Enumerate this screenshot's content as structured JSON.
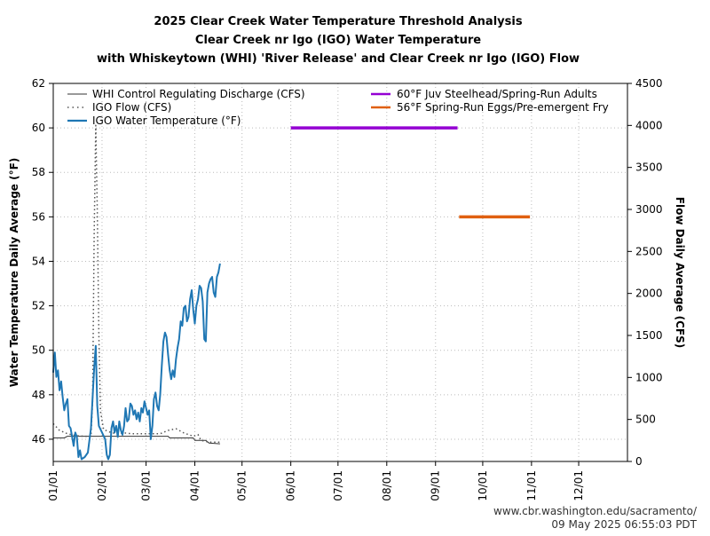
{
  "chart_data": {
    "type": "line",
    "title": "2025 Clear Creek Water Temperature Threshold Analysis",
    "subtitle_lines": [
      "Clear Creek nr Igo (IGO) Water Temperature",
      "with Whiskeytown (WHI) 'River Release' and Clear Creek nr Igo (IGO) Flow"
    ],
    "ylabel": "Water Temperature Daily Average (°F)",
    "y2label": "Flow Daily Average (CFS)",
    "ylim": [
      45,
      62
    ],
    "y2lim": [
      0,
      4500
    ],
    "xlim": [
      "2025-01-01",
      "2026-01-01"
    ],
    "x_tick_labels": [
      "01/01",
      "02/01",
      "03/01",
      "04/01",
      "05/01",
      "06/01",
      "07/01",
      "08/01",
      "09/01",
      "10/01",
      "11/01",
      "12/01"
    ],
    "x_tick_dates": [
      "2025-01-01",
      "2025-02-01",
      "2025-03-01",
      "2025-04-01",
      "2025-05-01",
      "2025-06-01",
      "2025-07-01",
      "2025-08-01",
      "2025-09-01",
      "2025-10-01",
      "2025-11-01",
      "2025-12-01"
    ],
    "y_ticks": [
      46,
      48,
      50,
      52,
      54,
      56,
      58,
      60,
      62
    ],
    "y2_ticks": [
      0,
      500,
      1000,
      1500,
      2000,
      2500,
      3000,
      3500,
      4000,
      4500
    ],
    "grid": true,
    "legend_left": [
      "WHI Control Regulating Discharge (CFS)",
      "IGO Flow (CFS)",
      "IGO Water Temperature (°F)"
    ],
    "legend_right": [
      "60°F Juv Steelhead/Spring-Run Adults",
      "56°F Spring-Run Eggs/Pre-emergent Fry"
    ],
    "series": [
      {
        "name": "IGO Water Temperature (°F)",
        "axis": "left",
        "color": "#1f77b4",
        "style": "solid",
        "points": [
          [
            "2025-01-01",
            49.0
          ],
          [
            "2025-01-02",
            49.9
          ],
          [
            "2025-01-03",
            48.8
          ],
          [
            "2025-01-04",
            49.1
          ],
          [
            "2025-01-05",
            48.2
          ],
          [
            "2025-01-06",
            48.6
          ],
          [
            "2025-01-07",
            47.9
          ],
          [
            "2025-01-08",
            47.3
          ],
          [
            "2025-01-09",
            47.6
          ],
          [
            "2025-01-10",
            47.8
          ],
          [
            "2025-01-11",
            46.6
          ],
          [
            "2025-01-12",
            46.5
          ],
          [
            "2025-01-13",
            46.1
          ],
          [
            "2025-01-14",
            45.7
          ],
          [
            "2025-01-15",
            46.3
          ],
          [
            "2025-01-16",
            46.1
          ],
          [
            "2025-01-17",
            45.2
          ],
          [
            "2025-01-18",
            45.5
          ],
          [
            "2025-01-19",
            45.1
          ],
          [
            "2025-01-21",
            45.2
          ],
          [
            "2025-01-23",
            45.4
          ],
          [
            "2025-01-25",
            46.5
          ],
          [
            "2025-01-27",
            49.2
          ],
          [
            "2025-01-28",
            50.2
          ],
          [
            "2025-01-29",
            47.5
          ],
          [
            "2025-01-30",
            46.6
          ],
          [
            "2025-02-01",
            46.3
          ],
          [
            "2025-02-03",
            46.0
          ],
          [
            "2025-02-04",
            45.3
          ],
          [
            "2025-02-05",
            45.1
          ],
          [
            "2025-02-06",
            45.3
          ],
          [
            "2025-02-07",
            46.5
          ],
          [
            "2025-02-08",
            46.8
          ],
          [
            "2025-02-09",
            46.3
          ],
          [
            "2025-02-10",
            46.6
          ],
          [
            "2025-02-11",
            46.1
          ],
          [
            "2025-02-12",
            46.8
          ],
          [
            "2025-02-13",
            46.4
          ],
          [
            "2025-02-14",
            46.2
          ],
          [
            "2025-02-15",
            46.6
          ],
          [
            "2025-02-16",
            47.4
          ],
          [
            "2025-02-17",
            46.8
          ],
          [
            "2025-02-18",
            46.9
          ],
          [
            "2025-02-19",
            47.6
          ],
          [
            "2025-02-20",
            47.5
          ],
          [
            "2025-02-21",
            47.1
          ],
          [
            "2025-02-22",
            47.3
          ],
          [
            "2025-02-23",
            46.9
          ],
          [
            "2025-02-24",
            47.2
          ],
          [
            "2025-02-25",
            46.8
          ],
          [
            "2025-02-26",
            47.4
          ],
          [
            "2025-02-27",
            47.2
          ],
          [
            "2025-02-28",
            47.7
          ],
          [
            "2025-03-01",
            47.4
          ],
          [
            "2025-03-02",
            47.1
          ],
          [
            "2025-03-03",
            47.3
          ],
          [
            "2025-03-04",
            46.0
          ],
          [
            "2025-03-05",
            46.6
          ],
          [
            "2025-03-06",
            47.8
          ],
          [
            "2025-03-07",
            48.1
          ],
          [
            "2025-03-08",
            47.5
          ],
          [
            "2025-03-09",
            47.3
          ],
          [
            "2025-03-10",
            48.0
          ],
          [
            "2025-03-11",
            49.3
          ],
          [
            "2025-03-12",
            50.4
          ],
          [
            "2025-03-13",
            50.8
          ],
          [
            "2025-03-14",
            50.6
          ],
          [
            "2025-03-15",
            49.8
          ],
          [
            "2025-03-16",
            49.1
          ],
          [
            "2025-03-17",
            48.7
          ],
          [
            "2025-03-18",
            49.1
          ],
          [
            "2025-03-19",
            48.8
          ],
          [
            "2025-03-20",
            49.6
          ],
          [
            "2025-03-21",
            50.1
          ],
          [
            "2025-03-22",
            50.5
          ],
          [
            "2025-03-23",
            51.3
          ],
          [
            "2025-03-24",
            51.1
          ],
          [
            "2025-03-25",
            51.9
          ],
          [
            "2025-03-26",
            52.0
          ],
          [
            "2025-03-27",
            51.3
          ],
          [
            "2025-03-28",
            51.5
          ],
          [
            "2025-03-29",
            52.3
          ],
          [
            "2025-03-30",
            52.7
          ],
          [
            "2025-03-31",
            51.8
          ],
          [
            "2025-04-01",
            51.2
          ],
          [
            "2025-04-02",
            52.0
          ],
          [
            "2025-04-03",
            52.3
          ],
          [
            "2025-04-04",
            52.9
          ],
          [
            "2025-04-05",
            52.8
          ],
          [
            "2025-04-06",
            52.2
          ],
          [
            "2025-04-07",
            50.5
          ],
          [
            "2025-04-08",
            50.4
          ],
          [
            "2025-04-09",
            52.6
          ],
          [
            "2025-04-10",
            53.0
          ],
          [
            "2025-04-11",
            53.2
          ],
          [
            "2025-04-12",
            53.3
          ],
          [
            "2025-04-13",
            52.6
          ],
          [
            "2025-04-14",
            52.4
          ],
          [
            "2025-04-15",
            53.3
          ],
          [
            "2025-04-16",
            53.5
          ],
          [
            "2025-04-17",
            53.9
          ]
        ]
      },
      {
        "name": "IGO Flow (CFS)",
        "axis": "right",
        "color": "#555555",
        "style": "dotted",
        "points": [
          [
            "2025-01-01",
            450
          ],
          [
            "2025-01-05",
            370
          ],
          [
            "2025-01-10",
            330
          ],
          [
            "2025-01-15",
            310
          ],
          [
            "2025-01-20",
            300
          ],
          [
            "2025-01-25",
            300
          ],
          [
            "2025-01-26",
            700
          ],
          [
            "2025-01-27",
            2700
          ],
          [
            "2025-01-28",
            4000
          ],
          [
            "2025-01-29",
            3000
          ],
          [
            "2025-01-30",
            1500
          ],
          [
            "2025-01-31",
            600
          ],
          [
            "2025-02-02",
            380
          ],
          [
            "2025-02-06",
            350
          ],
          [
            "2025-02-10",
            330
          ],
          [
            "2025-02-15",
            340
          ],
          [
            "2025-02-20",
            330
          ],
          [
            "2025-03-01",
            330
          ],
          [
            "2025-03-10",
            330
          ],
          [
            "2025-03-15",
            370
          ],
          [
            "2025-03-20",
            390
          ],
          [
            "2025-03-25",
            340
          ],
          [
            "2025-03-31",
            300
          ],
          [
            "2025-04-03",
            320
          ],
          [
            "2025-04-05",
            250
          ],
          [
            "2025-04-10",
            230
          ],
          [
            "2025-04-17",
            230
          ]
        ]
      },
      {
        "name": "WHI Control Regulating Discharge (CFS)",
        "axis": "right",
        "color": "#333333",
        "style": "solid",
        "points": [
          [
            "2025-01-01",
            280
          ],
          [
            "2025-01-08",
            280
          ],
          [
            "2025-01-10",
            300
          ],
          [
            "2025-02-01",
            300
          ],
          [
            "2025-03-01",
            300
          ],
          [
            "2025-03-15",
            300
          ],
          [
            "2025-03-16",
            280
          ],
          [
            "2025-03-31",
            280
          ],
          [
            "2025-04-01",
            250
          ],
          [
            "2025-04-08",
            250
          ],
          [
            "2025-04-10",
            220
          ],
          [
            "2025-04-17",
            210
          ]
        ]
      }
    ],
    "thresholds": [
      {
        "label": "60°F Juv Steelhead/Spring-Run Adults",
        "value": 60,
        "start": "2025-06-01",
        "end": "2025-09-15",
        "color": "#9400d3"
      },
      {
        "label": "56°F Spring-Run Eggs/Pre-emergent Fry",
        "value": 56,
        "start": "2025-09-16",
        "end": "2025-10-31",
        "color": "#e06010"
      }
    ]
  },
  "credit": {
    "url": "www.cbr.washington.edu/sacramento/",
    "timestamp": "09 May 2025 06:55:03 PDT"
  }
}
